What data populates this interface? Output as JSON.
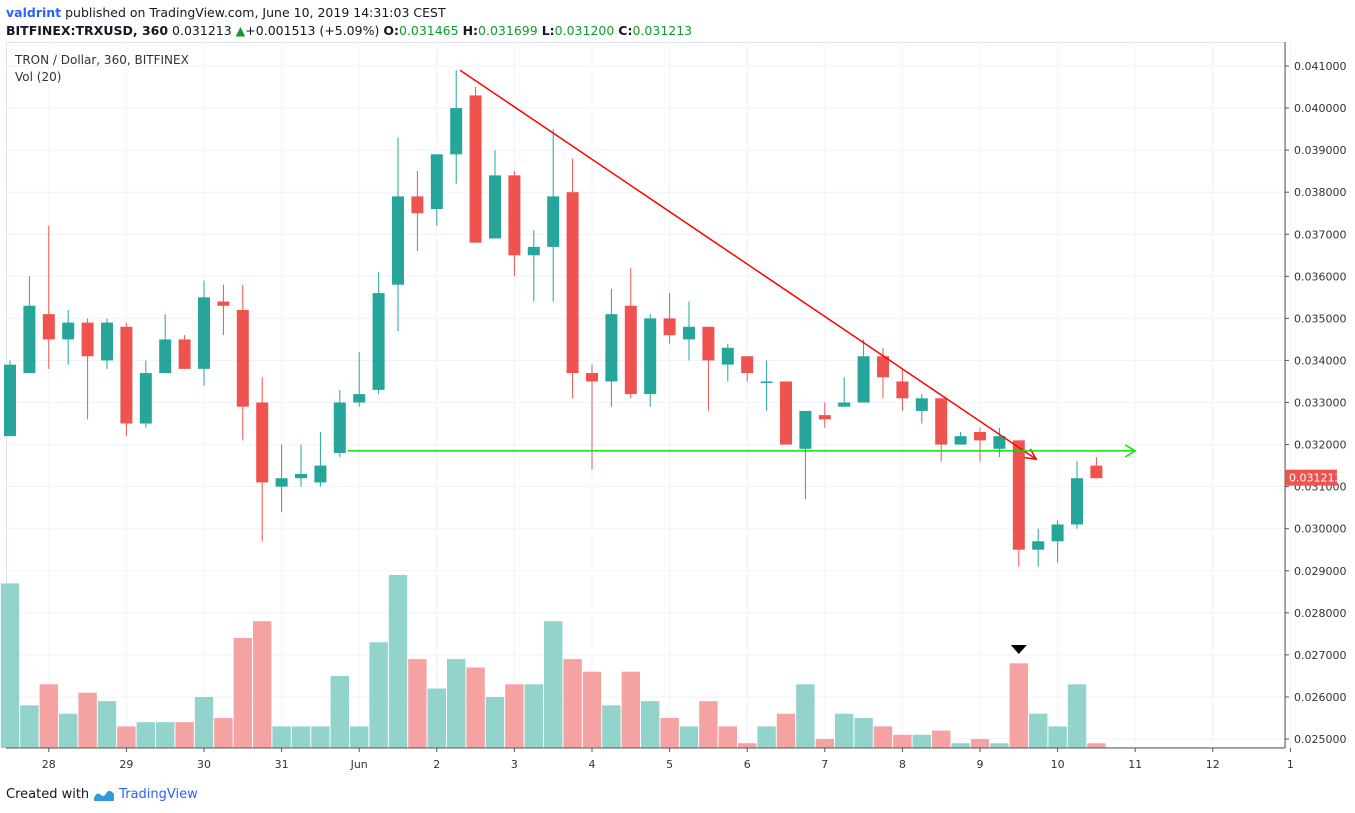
{
  "header": {
    "author": "valdrint",
    "published_text": "published on TradingView.com, June 10, 2019 14:31:03 CEST",
    "symbol_line": "BITFINEX:TRXUSD, 360",
    "last_price": "0.031213",
    "change": "+0.001513 (+5.09%)",
    "o_label": "O:",
    "o_value": "0.031465",
    "h_label": "H:",
    "h_value": "0.031699",
    "l_label": "L:",
    "l_value": "0.031200",
    "c_label": "C:",
    "c_value": "0.031213"
  },
  "legend": {
    "title": "TRON / Dollar, 360, BITFINEX",
    "volume": "Vol (20)"
  },
  "footer": {
    "created_with": "Created with",
    "brand": "TradingView"
  },
  "colors": {
    "up": "#26a69a",
    "down": "#ef5350",
    "up_volume": "#92d3cc",
    "down_volume": "#f5a3a2",
    "trendline": "#ff0000",
    "support": "#00e600",
    "price_tag": "#ef5350"
  },
  "chart_data": {
    "type": "candlestick",
    "title": "TRON / Dollar, 360, BITFINEX",
    "interval_hours": 6,
    "y_range": [
      0.0245,
      0.0413
    ],
    "y_ticks": [
      "0.041000",
      "0.040000",
      "0.039000",
      "0.038000",
      "0.037000",
      "0.036000",
      "0.035000",
      "0.034000",
      "0.033000",
      "0.032000",
      "0.031000",
      "0.030000",
      "0.029000",
      "0.028000",
      "0.027000",
      "0.026000",
      "0.025000"
    ],
    "x_ticks": [
      {
        "label": "28",
        "bar": 2
      },
      {
        "label": "29",
        "bar": 6
      },
      {
        "label": "30",
        "bar": 10
      },
      {
        "label": "31",
        "bar": 14
      },
      {
        "label": "Jun",
        "bar": 18
      },
      {
        "label": "2",
        "bar": 22
      },
      {
        "label": "3",
        "bar": 26
      },
      {
        "label": "4",
        "bar": 30
      },
      {
        "label": "5",
        "bar": 34
      },
      {
        "label": "6",
        "bar": 38
      },
      {
        "label": "7",
        "bar": 42
      },
      {
        "label": "8",
        "bar": 46
      },
      {
        "label": "9",
        "bar": 50
      },
      {
        "label": "10",
        "bar": 54
      },
      {
        "label": "11",
        "bar": 58
      },
      {
        "label": "12",
        "bar": 62
      },
      {
        "label": "1",
        "bar": 66
      }
    ],
    "candles": [
      {
        "o": 0.0322,
        "h": 0.034,
        "l": 0.0322,
        "c": 0.0339
      },
      {
        "o": 0.0337,
        "h": 0.036,
        "l": 0.0337,
        "c": 0.0353
      },
      {
        "o": 0.0351,
        "h": 0.0372,
        "l": 0.0338,
        "c": 0.0345
      },
      {
        "o": 0.0345,
        "h": 0.0352,
        "l": 0.0339,
        "c": 0.0349
      },
      {
        "o": 0.0349,
        "h": 0.035,
        "l": 0.0326,
        "c": 0.0341
      },
      {
        "o": 0.034,
        "h": 0.035,
        "l": 0.0338,
        "c": 0.0349
      },
      {
        "o": 0.0348,
        "h": 0.0349,
        "l": 0.0322,
        "c": 0.0325
      },
      {
        "o": 0.0325,
        "h": 0.034,
        "l": 0.0324,
        "c": 0.0337
      },
      {
        "o": 0.0337,
        "h": 0.0351,
        "l": 0.0337,
        "c": 0.0345
      },
      {
        "o": 0.0345,
        "h": 0.0346,
        "l": 0.0338,
        "c": 0.0338
      },
      {
        "o": 0.0338,
        "h": 0.0359,
        "l": 0.0334,
        "c": 0.0355
      },
      {
        "o": 0.0354,
        "h": 0.0358,
        "l": 0.0346,
        "c": 0.0353
      },
      {
        "o": 0.0352,
        "h": 0.0358,
        "l": 0.0321,
        "c": 0.0329
      },
      {
        "o": 0.033,
        "h": 0.0336,
        "l": 0.0297,
        "c": 0.0311
      },
      {
        "o": 0.031,
        "h": 0.032,
        "l": 0.0304,
        "c": 0.0312
      },
      {
        "o": 0.0312,
        "h": 0.032,
        "l": 0.031,
        "c": 0.0313
      },
      {
        "o": 0.0311,
        "h": 0.0323,
        "l": 0.031,
        "c": 0.0315
      },
      {
        "o": 0.0318,
        "h": 0.0333,
        "l": 0.0317,
        "c": 0.033
      },
      {
        "o": 0.033,
        "h": 0.0342,
        "l": 0.0329,
        "c": 0.0332
      },
      {
        "o": 0.0333,
        "h": 0.0361,
        "l": 0.0332,
        "c": 0.0356
      },
      {
        "o": 0.0358,
        "h": 0.0393,
        "l": 0.0347,
        "c": 0.0379
      },
      {
        "o": 0.0379,
        "h": 0.0385,
        "l": 0.0366,
        "c": 0.0375
      },
      {
        "o": 0.0376,
        "h": 0.0389,
        "l": 0.0372,
        "c": 0.0389
      },
      {
        "o": 0.0389,
        "h": 0.0409,
        "l": 0.0382,
        "c": 0.04
      },
      {
        "o": 0.0403,
        "h": 0.0405,
        "l": 0.0368,
        "c": 0.0368
      },
      {
        "o": 0.0369,
        "h": 0.039,
        "l": 0.0369,
        "c": 0.0384
      },
      {
        "o": 0.0384,
        "h": 0.0385,
        "l": 0.036,
        "c": 0.0365
      },
      {
        "o": 0.0365,
        "h": 0.0371,
        "l": 0.0354,
        "c": 0.0367
      },
      {
        "o": 0.0367,
        "h": 0.0395,
        "l": 0.0354,
        "c": 0.0379
      },
      {
        "o": 0.038,
        "h": 0.0388,
        "l": 0.0331,
        "c": 0.0337
      },
      {
        "o": 0.0337,
        "h": 0.0339,
        "l": 0.0314,
        "c": 0.0335
      },
      {
        "o": 0.0335,
        "h": 0.0357,
        "l": 0.0329,
        "c": 0.0351
      },
      {
        "o": 0.0353,
        "h": 0.0362,
        "l": 0.0331,
        "c": 0.0332
      },
      {
        "o": 0.0332,
        "h": 0.0351,
        "l": 0.0329,
        "c": 0.035
      },
      {
        "o": 0.035,
        "h": 0.0356,
        "l": 0.0344,
        "c": 0.0346
      },
      {
        "o": 0.0345,
        "h": 0.0354,
        "l": 0.034,
        "c": 0.0348
      },
      {
        "o": 0.0348,
        "h": 0.0348,
        "l": 0.0328,
        "c": 0.034
      },
      {
        "o": 0.0339,
        "h": 0.0344,
        "l": 0.0335,
        "c": 0.0343
      },
      {
        "o": 0.0341,
        "h": 0.0341,
        "l": 0.0335,
        "c": 0.0337
      },
      {
        "o": 0.0335,
        "h": 0.034,
        "l": 0.0328,
        "c": 0.0335
      },
      {
        "o": 0.0335,
        "h": 0.0335,
        "l": 0.032,
        "c": 0.032
      },
      {
        "o": 0.0319,
        "h": 0.0328,
        "l": 0.0307,
        "c": 0.0328
      },
      {
        "o": 0.0327,
        "h": 0.033,
        "l": 0.0324,
        "c": 0.0326
      },
      {
        "o": 0.0329,
        "h": 0.0336,
        "l": 0.0329,
        "c": 0.033
      },
      {
        "o": 0.033,
        "h": 0.0345,
        "l": 0.033,
        "c": 0.0341
      },
      {
        "o": 0.0341,
        "h": 0.0343,
        "l": 0.0331,
        "c": 0.0336
      },
      {
        "o": 0.0335,
        "h": 0.0338,
        "l": 0.0328,
        "c": 0.0331
      },
      {
        "o": 0.0328,
        "h": 0.0332,
        "l": 0.0325,
        "c": 0.0331
      },
      {
        "o": 0.0331,
        "h": 0.0331,
        "l": 0.0316,
        "c": 0.032
      },
      {
        "o": 0.032,
        "h": 0.0323,
        "l": 0.032,
        "c": 0.0322
      },
      {
        "o": 0.0323,
        "h": 0.0324,
        "l": 0.0316,
        "c": 0.0321
      },
      {
        "o": 0.0319,
        "h": 0.0324,
        "l": 0.0317,
        "c": 0.0322
      },
      {
        "o": 0.0321,
        "h": 0.0321,
        "l": 0.0291,
        "c": 0.0295
      },
      {
        "o": 0.0295,
        "h": 0.03,
        "l": 0.0291,
        "c": 0.0297
      },
      {
        "o": 0.0297,
        "h": 0.0302,
        "l": 0.0292,
        "c": 0.0301
      },
      {
        "o": 0.0301,
        "h": 0.0316,
        "l": 0.03,
        "c": 0.0312
      },
      {
        "o": 0.0315,
        "h": 0.0317,
        "l": 0.0312,
        "c": 0.0312
      }
    ],
    "volume": [
      {
        "v": 0.0287,
        "up": true
      },
      {
        "v": 0.0258,
        "up": true
      },
      {
        "v": 0.0263,
        "up": false
      },
      {
        "v": 0.0256,
        "up": true
      },
      {
        "v": 0.0261,
        "up": false
      },
      {
        "v": 0.0259,
        "up": true
      },
      {
        "v": 0.0253,
        "up": false
      },
      {
        "v": 0.0254,
        "up": true
      },
      {
        "v": 0.0254,
        "up": true
      },
      {
        "v": 0.0254,
        "up": false
      },
      {
        "v": 0.026,
        "up": true
      },
      {
        "v": 0.0255,
        "up": false
      },
      {
        "v": 0.0274,
        "up": false
      },
      {
        "v": 0.0278,
        "up": false
      },
      {
        "v": 0.0253,
        "up": true
      },
      {
        "v": 0.0253,
        "up": true
      },
      {
        "v": 0.0253,
        "up": true
      },
      {
        "v": 0.0265,
        "up": true
      },
      {
        "v": 0.0253,
        "up": true
      },
      {
        "v": 0.0273,
        "up": true
      },
      {
        "v": 0.0289,
        "up": true
      },
      {
        "v": 0.0269,
        "up": false
      },
      {
        "v": 0.0262,
        "up": true
      },
      {
        "v": 0.0269,
        "up": true
      },
      {
        "v": 0.0267,
        "up": false
      },
      {
        "v": 0.026,
        "up": true
      },
      {
        "v": 0.0263,
        "up": false
      },
      {
        "v": 0.0263,
        "up": true
      },
      {
        "v": 0.0278,
        "up": true
      },
      {
        "v": 0.0269,
        "up": false
      },
      {
        "v": 0.0266,
        "up": false
      },
      {
        "v": 0.0258,
        "up": true
      },
      {
        "v": 0.0266,
        "up": false
      },
      {
        "v": 0.0259,
        "up": true
      },
      {
        "v": 0.0255,
        "up": false
      },
      {
        "v": 0.0253,
        "up": true
      },
      {
        "v": 0.0259,
        "up": false
      },
      {
        "v": 0.0253,
        "up": false
      },
      {
        "v": 0.0249,
        "up": false
      },
      {
        "v": 0.0253,
        "up": true
      },
      {
        "v": 0.0256,
        "up": false
      },
      {
        "v": 0.0263,
        "up": true
      },
      {
        "v": 0.025,
        "up": false
      },
      {
        "v": 0.0256,
        "up": true
      },
      {
        "v": 0.0255,
        "up": true
      },
      {
        "v": 0.0253,
        "up": false
      },
      {
        "v": 0.0251,
        "up": false
      },
      {
        "v": 0.0251,
        "up": true
      },
      {
        "v": 0.0252,
        "up": false
      },
      {
        "v": 0.0249,
        "up": true
      },
      {
        "v": 0.025,
        "up": false
      },
      {
        "v": 0.0249,
        "up": true
      },
      {
        "v": 0.0268,
        "up": false
      },
      {
        "v": 0.0256,
        "up": true
      },
      {
        "v": 0.0253,
        "up": true
      },
      {
        "v": 0.0263,
        "up": true
      },
      {
        "v": 0.0249,
        "up": false
      }
    ],
    "annotations": {
      "trendline": {
        "from_bar": 23.2,
        "from_price": 0.0409,
        "to_bar": 52.9,
        "to_price": 0.03165
      },
      "support": {
        "from_bar": 17.4,
        "to_bar": 58.0,
        "price": 0.03185
      },
      "marker_bar": 52
    }
  }
}
